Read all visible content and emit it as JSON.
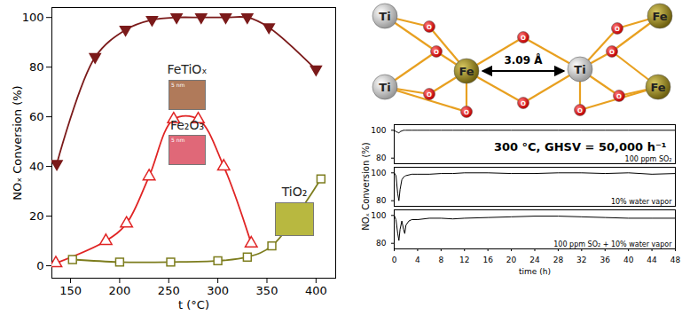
{
  "chart_data": [
    {
      "type": "line",
      "xlabel": "t (°C)",
      "ylabel": "NOₓ Conversion (%)",
      "xlim": [
        131,
        420
      ],
      "xticks": [
        150,
        200,
        250,
        300,
        350,
        400
      ],
      "ylim": [
        -5,
        104
      ],
      "yticks": [
        0,
        20,
        40,
        60,
        80,
        100
      ],
      "series": [
        {
          "name": "FeTiOₓ",
          "color": "#7b1a1a",
          "marker": "triangle-down",
          "inset_label": "5 nm",
          "x": [
            136,
            175,
            206,
            233,
            258,
            283,
            308,
            330,
            352,
            400
          ],
          "values": [
            41,
            84,
            95,
            99,
            100,
            100,
            100,
            100,
            96,
            79
          ]
        },
        {
          "name": "Fe₂O₃",
          "color": "#e02424",
          "marker": "triangle-open",
          "inset_label": "5 nm",
          "x": [
            135,
            186,
            207,
            230,
            255,
            280,
            306,
            334
          ],
          "values": [
            1,
            10,
            17,
            36,
            59,
            59,
            40,
            9
          ]
        },
        {
          "name": "TiO₂",
          "color": "#7d7d1e",
          "marker": "square-open",
          "x": [
            152,
            200,
            252,
            300,
            330,
            355,
            405
          ],
          "values": [
            2.5,
            1.5,
            1.5,
            2,
            3.5,
            8,
            35
          ]
        }
      ]
    },
    {
      "type": "multiples",
      "annotation": "300 °C, GHSV = 50,000 h⁻¹",
      "xlabel": "time (h)",
      "ylabel": "NOₓ Conversion (%)",
      "xlim": [
        0,
        48
      ],
      "xticks": [
        0,
        4,
        8,
        12,
        16,
        20,
        24,
        28,
        32,
        36,
        40,
        44,
        48
      ],
      "ylim": [
        76,
        104
      ],
      "yticks": [
        80,
        100
      ],
      "x": [
        0,
        0.3,
        0.6,
        0.8,
        1,
        1.3,
        1.6,
        1.8,
        2,
        2.5,
        3,
        4,
        6,
        8,
        10,
        12,
        16,
        20,
        24,
        28,
        32,
        36,
        40,
        44,
        48
      ],
      "series": [
        {
          "name": "100 ppm SO₂",
          "color": "#000000",
          "values": [
            100,
            99,
            98.5,
            98,
            99,
            99.5,
            100,
            100,
            100,
            100,
            100,
            100,
            100,
            100,
            100,
            100,
            100,
            100,
            100,
            100,
            100,
            100,
            100,
            100,
            100
          ]
        },
        {
          "name": "10% water vapor",
          "color": "#000000",
          "values": [
            100,
            98,
            85,
            80,
            88,
            95,
            97,
            97.5,
            98,
            98.5,
            99,
            99,
            99,
            99.5,
            99.5,
            100,
            100,
            99.5,
            99.5,
            100,
            100,
            99.5,
            100,
            99,
            99.5
          ]
        },
        {
          "name": "100 ppm SO₂ + 10% water vapor",
          "color": "#000000",
          "values": [
            100,
            97,
            87,
            82,
            90,
            96,
            90,
            87,
            93,
            96,
            97,
            97,
            98,
            98,
            97.5,
            98,
            98.5,
            99,
            99.5,
            99.5,
            99,
            98.5,
            98,
            98,
            98
          ]
        }
      ]
    }
  ],
  "diagram": {
    "atoms": [
      "Ti",
      "Ti",
      "Fe",
      "Ti",
      "Fe",
      "Fe",
      "O",
      "O",
      "O",
      "O",
      "O",
      "O",
      "O",
      "O",
      "O",
      "O"
    ],
    "distance_label": "3.09 Å"
  }
}
